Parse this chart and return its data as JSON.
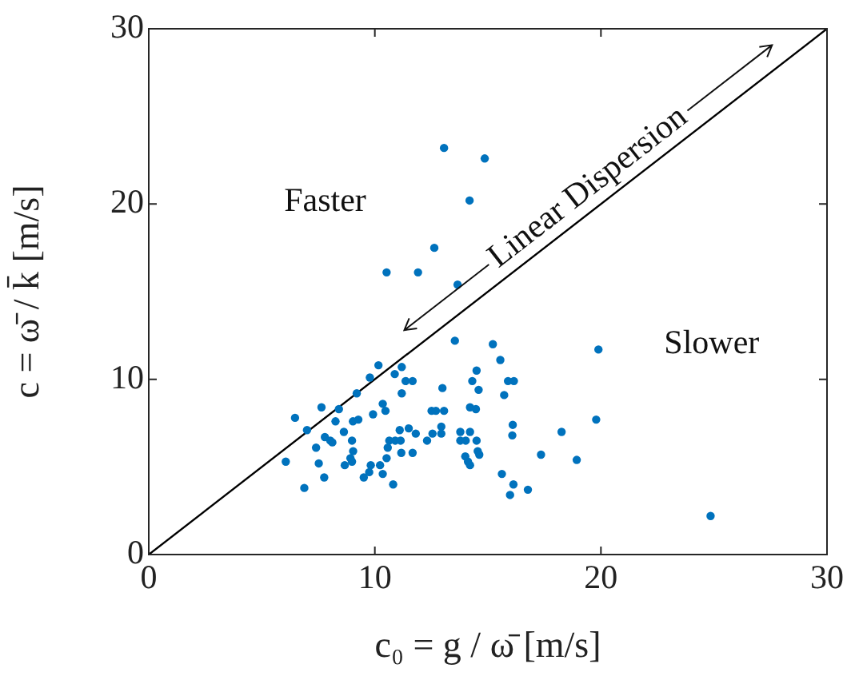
{
  "chart_data": {
    "type": "scatter",
    "xlabel": "c₀ = g / ω̄ [m/s]",
    "ylabel": "c = ω̄ / k̄ [m/s]",
    "xlim": [
      0,
      30
    ],
    "ylim": [
      0,
      30
    ],
    "xticks": [
      0,
      10,
      20,
      30
    ],
    "yticks": [
      0,
      10,
      20,
      30
    ],
    "grid": false,
    "legend": false,
    "marker": "circle",
    "annotations": [
      "Faster",
      "Slower",
      {
        "text": "Linear Dispersion",
        "x": 20,
        "y": 20
      }
    ],
    "series": [
      {
        "color": "#0072bd",
        "x": [
          13.06,
          14.86,
          14.19,
          12.63,
          10.52,
          11.91,
          13.66,
          13.54,
          15.22,
          15.55,
          19.89,
          10.16,
          11.19,
          9.78,
          10.88,
          14.5,
          11.36,
          11.67,
          14.31,
          15.89,
          16.15,
          9.2,
          11.19,
          12.99,
          14.59,
          15.72,
          10.35,
          10.47,
          7.64,
          8.41,
          12.51,
          12.7,
          13.06,
          14.21,
          14.47,
          6.47,
          9.92,
          9.03,
          9.27,
          8.26,
          19.79,
          7.0,
          11.1,
          11.5,
          11.81,
          12.55,
          12.94,
          12.94,
          13.78,
          14.21,
          16.1,
          16.08,
          18.26,
          8.63,
          7.79,
          8.03,
          8.12,
          8.99,
          10.64,
          10.9,
          11.14,
          12.31,
          13.78,
          14.02,
          14.5,
          7.4,
          9.04,
          10.57,
          11.17,
          11.67,
          14.55,
          14.62,
          17.35,
          6.06,
          7.52,
          8.67,
          8.99,
          8.92,
          10.52,
          14.0,
          14.12,
          14.21,
          18.93,
          7.76,
          9.51,
          9.82,
          10.23,
          10.35,
          9.75,
          15.62,
          10.81,
          6.88,
          16.13,
          15.98,
          16.77,
          24.85
        ],
        "values": [
          23.2,
          22.6,
          20.2,
          17.5,
          16.1,
          16.1,
          15.4,
          12.2,
          12.0,
          11.1,
          11.7,
          10.8,
          10.7,
          10.1,
          10.3,
          10.5,
          9.9,
          9.9,
          9.9,
          9.9,
          9.9,
          9.2,
          9.2,
          9.5,
          9.4,
          9.1,
          8.6,
          8.2,
          8.4,
          8.3,
          8.2,
          8.2,
          8.2,
          8.4,
          8.3,
          7.8,
          8.0,
          7.6,
          7.7,
          7.6,
          7.7,
          7.1,
          7.1,
          7.2,
          6.9,
          6.9,
          7.3,
          6.9,
          7.0,
          7.0,
          7.4,
          6.8,
          7.0,
          7.0,
          6.7,
          6.5,
          6.4,
          6.5,
          6.5,
          6.5,
          6.5,
          6.5,
          6.5,
          6.5,
          6.5,
          6.1,
          5.9,
          6.1,
          5.8,
          5.8,
          5.9,
          5.7,
          5.7,
          5.3,
          5.2,
          5.1,
          5.3,
          5.5,
          5.5,
          5.6,
          5.3,
          5.1,
          5.4,
          4.4,
          4.4,
          5.1,
          5.1,
          4.6,
          4.7,
          4.6,
          4.0,
          3.8,
          4.0,
          3.4,
          3.7,
          2.2
        ]
      },
      {
        "type": "line",
        "color": "#000000",
        "x": [
          0,
          30
        ],
        "values": [
          0,
          30
        ],
        "marker": "none"
      }
    ]
  }
}
